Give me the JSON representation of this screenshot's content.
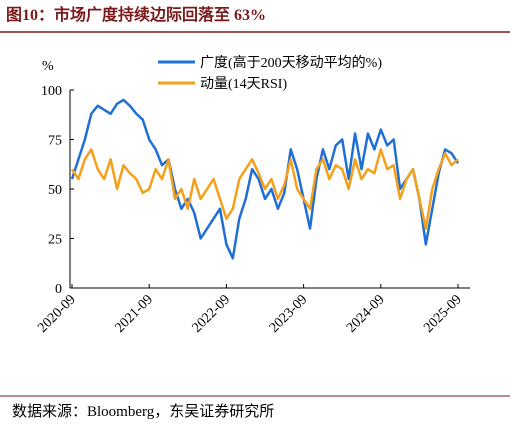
{
  "chart_data": {
    "type": "line",
    "title": "图10：市场广度持续边际回落至 63%",
    "ylabel": "%",
    "source": "数据来源：Bloomberg，东吴证券研究所",
    "x": [
      "2020-09",
      "2020-10",
      "2020-11",
      "2020-12",
      "2021-01",
      "2021-02",
      "2021-03",
      "2021-04",
      "2021-05",
      "2021-06",
      "2021-07",
      "2021-08",
      "2021-09",
      "2021-10",
      "2021-11",
      "2021-12",
      "2022-01",
      "2022-02",
      "2022-03",
      "2022-04",
      "2022-05",
      "2022-06",
      "2022-07",
      "2022-08",
      "2022-09",
      "2022-10",
      "2022-11",
      "2022-12",
      "2023-01",
      "2023-02",
      "2023-03",
      "2023-04",
      "2023-05",
      "2023-06",
      "2023-07",
      "2023-08",
      "2023-09",
      "2023-10",
      "2023-11",
      "2023-12",
      "2024-01",
      "2024-02",
      "2024-03",
      "2024-04",
      "2024-05",
      "2024-06",
      "2024-07",
      "2024-08",
      "2024-09",
      "2024-10",
      "2024-11",
      "2024-12",
      "2025-01",
      "2025-02",
      "2025-03",
      "2025-04",
      "2025-05",
      "2025-06",
      "2025-07",
      "2025-08",
      "2025-09"
    ],
    "series": [
      {
        "name": "广度(高于200天移动平均的%)",
        "color": "#1f6fd6",
        "values": [
          55,
          65,
          75,
          88,
          92,
          90,
          88,
          93,
          95,
          92,
          88,
          85,
          75,
          70,
          62,
          65,
          50,
          40,
          45,
          38,
          25,
          30,
          35,
          40,
          22,
          15,
          35,
          45,
          60,
          55,
          45,
          50,
          40,
          48,
          70,
          60,
          45,
          30,
          55,
          70,
          60,
          72,
          75,
          55,
          78,
          60,
          78,
          70,
          80,
          72,
          75,
          50,
          55,
          60,
          45,
          22,
          40,
          58,
          70,
          68,
          63
        ]
      },
      {
        "name": "动量(14天RSI)",
        "color": "#f5a01a",
        "values": [
          60,
          55,
          65,
          70,
          60,
          55,
          65,
          50,
          62,
          58,
          55,
          48,
          50,
          60,
          55,
          65,
          45,
          50,
          40,
          55,
          45,
          50,
          55,
          45,
          35,
          40,
          55,
          60,
          65,
          58,
          50,
          55,
          45,
          52,
          65,
          50,
          45,
          40,
          60,
          65,
          55,
          62,
          60,
          50,
          65,
          55,
          60,
          58,
          70,
          60,
          62,
          45,
          55,
          60,
          45,
          30,
          50,
          60,
          68,
          62,
          65
        ]
      }
    ],
    "xticks": [
      "2020-09",
      "2021-09",
      "2022-09",
      "2023-09",
      "2024-09",
      "2025-09"
    ],
    "ylim": [
      0,
      100
    ],
    "yticks": [
      0,
      25,
      50,
      75,
      100
    ],
    "grid": false,
    "legend": "top"
  }
}
